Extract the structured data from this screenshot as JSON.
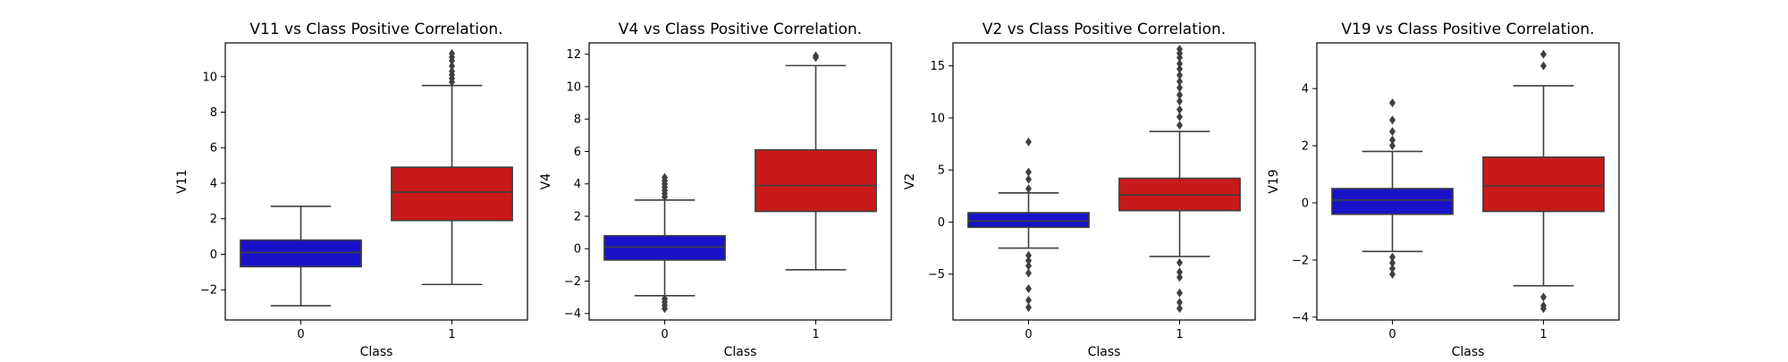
{
  "chart_data": [
    {
      "type": "box",
      "title": "V11 vs Class Positive Correlation.",
      "xlabel": "Class",
      "ylabel": "V11",
      "categories": [
        "0",
        "1"
      ],
      "colors": [
        "#1a12c8",
        "#c81a1a"
      ],
      "ylim": [
        -3.7,
        11.9
      ],
      "yticks": [
        -2,
        0,
        2,
        4,
        6,
        8,
        10
      ],
      "boxes": [
        {
          "category": "0",
          "whisker_low": -2.9,
          "q1": -0.7,
          "median": 0.1,
          "q3": 0.8,
          "whisker_high": 2.7,
          "outliers": []
        },
        {
          "category": "1",
          "whisker_low": -1.7,
          "q1": 1.9,
          "median": 3.5,
          "q3": 4.9,
          "whisker_high": 9.5,
          "outliers": [
            9.7,
            9.9,
            10.1,
            10.3,
            10.6,
            10.9,
            11.1,
            11.3
          ]
        }
      ]
    },
    {
      "type": "box",
      "title": "V4 vs Class Positive Correlation.",
      "xlabel": "Class",
      "ylabel": "V4",
      "categories": [
        "0",
        "1"
      ],
      "colors": [
        "#1a12c8",
        "#c81a1a"
      ],
      "ylim": [
        -4.4,
        12.7
      ],
      "yticks": [
        -4,
        -2,
        0,
        2,
        4,
        6,
        8,
        10,
        12
      ],
      "boxes": [
        {
          "category": "0",
          "whisker_low": -2.9,
          "q1": -0.7,
          "median": 0.1,
          "q3": 0.8,
          "whisker_high": 3.0,
          "outliers": [
            3.2,
            3.4,
            3.6,
            3.8,
            4.0,
            4.2,
            4.4,
            -3.1,
            -3.3,
            -3.5,
            -3.7
          ]
        },
        {
          "category": "1",
          "whisker_low": -1.3,
          "q1": 2.3,
          "median": 3.9,
          "q3": 6.1,
          "whisker_high": 11.3,
          "outliers": [
            11.8,
            11.9
          ]
        }
      ]
    },
    {
      "type": "box",
      "title": "V2 vs Class Positive Correlation.",
      "xlabel": "Class",
      "ylabel": "V2",
      "categories": [
        "0",
        "1"
      ],
      "colors": [
        "#1a12c8",
        "#c81a1a"
      ],
      "ylim": [
        -9.4,
        17.2
      ],
      "yticks": [
        -5,
        0,
        5,
        10,
        15
      ],
      "boxes": [
        {
          "category": "0",
          "whisker_low": -2.5,
          "q1": -0.5,
          "median": 0.1,
          "q3": 0.9,
          "whisker_high": 2.8,
          "outliers": [
            7.7,
            4.8,
            4.1,
            3.2,
            -3.2,
            -3.7,
            -4.2,
            -4.9,
            -6.4,
            -7.5,
            -8.2
          ]
        },
        {
          "category": "1",
          "whisker_low": -3.3,
          "q1": 1.1,
          "median": 2.6,
          "q3": 4.2,
          "whisker_high": 8.7,
          "outliers": [
            9.3,
            10.1,
            10.8,
            11.6,
            12.2,
            12.9,
            13.5,
            14.1,
            14.7,
            15.2,
            15.8,
            16.2,
            16.6,
            -3.9,
            -4.8,
            -5.3,
            -6.8,
            -7.7,
            -8.3
          ]
        }
      ]
    },
    {
      "type": "box",
      "title": "V19 vs Class Positive Correlation.",
      "xlabel": "Class",
      "ylabel": "V19",
      "categories": [
        "0",
        "1"
      ],
      "colors": [
        "#1a12c8",
        "#c81a1a"
      ],
      "ylim": [
        -4.1,
        5.6
      ],
      "yticks": [
        -4,
        -2,
        0,
        2,
        4
      ],
      "boxes": [
        {
          "category": "0",
          "whisker_low": -1.7,
          "q1": -0.4,
          "median": 0.1,
          "q3": 0.5,
          "whisker_high": 1.8,
          "outliers": [
            3.5,
            2.9,
            2.5,
            2.2,
            2.0,
            -1.9,
            -2.1,
            -2.3,
            -2.5
          ]
        },
        {
          "category": "1",
          "whisker_low": -2.9,
          "q1": -0.3,
          "median": 0.6,
          "q3": 1.6,
          "whisker_high": 4.1,
          "outliers": [
            5.2,
            4.8,
            -3.3,
            -3.6,
            -3.7
          ]
        }
      ]
    }
  ]
}
